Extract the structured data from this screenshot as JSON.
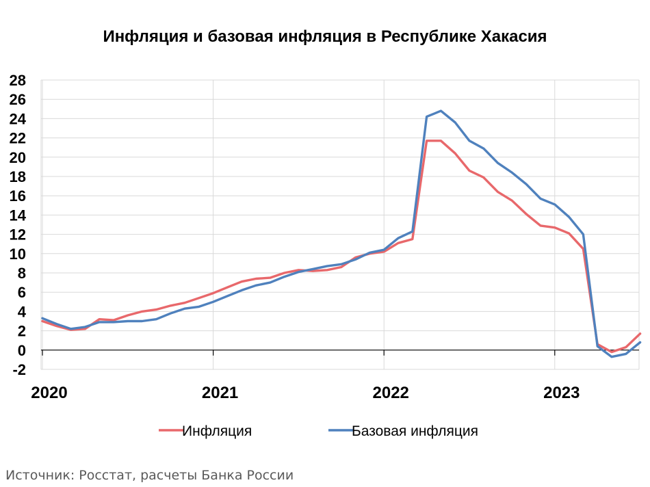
{
  "chart_data": {
    "type": "line",
    "title": "Инфляция и базовая инфляция в Республике Хакасия",
    "x_start": "2020-01",
    "x_labels": [
      "2020",
      "2021",
      "2022",
      "2023"
    ],
    "y_ticks": [
      "-2",
      "0",
      "2",
      "4",
      "6",
      "8",
      "10",
      "12",
      "14",
      "16",
      "18",
      "20",
      "22",
      "24",
      "26",
      "28"
    ],
    "ylim": [
      -2,
      28
    ],
    "grid": true,
    "legend_position": "bottom",
    "series": [
      {
        "name": "Инфляция",
        "color": "#E8686B",
        "values": [
          3.0,
          2.5,
          2.1,
          2.2,
          3.2,
          3.1,
          3.6,
          4.0,
          4.2,
          4.6,
          4.9,
          5.4,
          5.9,
          6.5,
          7.1,
          7.4,
          7.5,
          8.0,
          8.3,
          8.2,
          8.3,
          8.6,
          9.6,
          10.0,
          10.2,
          11.1,
          11.5,
          21.7,
          21.7,
          20.4,
          18.6,
          17.9,
          16.4,
          15.5,
          14.1,
          12.9,
          12.7,
          12.1,
          10.5,
          0.6,
          -0.2,
          0.3,
          1.7
        ]
      },
      {
        "name": "Базовая инфляция",
        "color": "#4F81BD",
        "values": [
          3.3,
          2.7,
          2.2,
          2.4,
          2.9,
          2.9,
          3.0,
          3.0,
          3.2,
          3.8,
          4.3,
          4.5,
          5.0,
          5.6,
          6.2,
          6.7,
          7.0,
          7.6,
          8.1,
          8.4,
          8.7,
          8.9,
          9.4,
          10.1,
          10.4,
          11.6,
          12.3,
          24.2,
          24.8,
          23.6,
          21.7,
          20.9,
          19.4,
          18.4,
          17.2,
          15.7,
          15.1,
          13.8,
          12.0,
          0.4,
          -0.7,
          -0.4,
          0.8
        ]
      }
    ]
  },
  "footer": {
    "source": "Источник: Росстат, расчеты Банка России"
  }
}
